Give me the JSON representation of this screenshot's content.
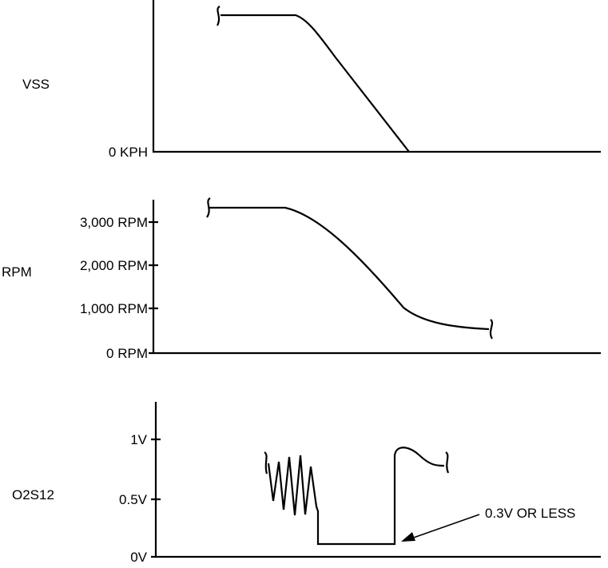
{
  "panels": {
    "vss": {
      "name": "VSS",
      "ticks": [
        "0 KPH"
      ]
    },
    "rpm": {
      "name": "RPM",
      "ticks": [
        "3,000 RPM",
        "2,000 RPM",
        "1,000 RPM",
        "0 RPM"
      ]
    },
    "o2s": {
      "name": "O2S12",
      "ticks": [
        "1V",
        "0.5V",
        "0V"
      ]
    }
  },
  "annotation": "0.3V OR LESS"
}
